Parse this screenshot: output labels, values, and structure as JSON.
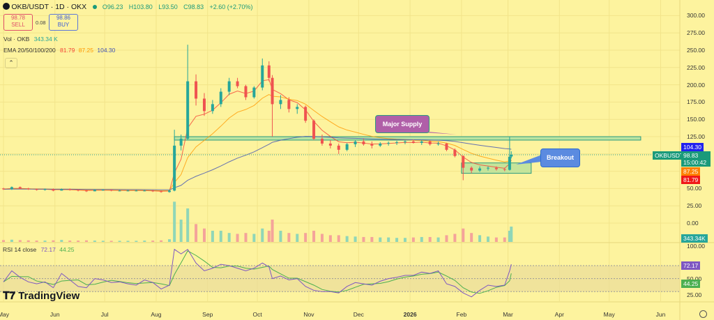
{
  "header": {
    "symbol": "OKB/USDT · 1D · OKX",
    "open": "O96.23",
    "high": "H103.80",
    "low": "L93.50",
    "close": "C98.83",
    "change": "+2.60 (+2.70%)",
    "sell_price": "98.78",
    "sell_label": "SELL",
    "spread": "0.08",
    "buy_price": "98.86",
    "buy_label": "BUY"
  },
  "indicators": {
    "volume_label": "Vol · OKB",
    "volume_value": "343.34 K",
    "ema_label": "EMA 20/50/100/200",
    "ema20": "81.79",
    "ema50": "87.25",
    "ema200": "104.30",
    "rsi_label": "RSI 14 close",
    "rsi_value": "72.17",
    "rsi_ma_value": "44.25",
    "collapse_icon": "chevron-up-icon"
  },
  "price_axis": [
    "300.00",
    "275.00",
    "250.00",
    "225.00",
    "200.00",
    "175.00",
    "150.00",
    "125.00",
    "50.00",
    "25.00",
    "0.00"
  ],
  "rsi_axis": [
    "100.00",
    "50.00",
    "25.00"
  ],
  "tags": {
    "symbol": "OKBUSDT",
    "price": "98.83",
    "countdown": "15:00:42",
    "ema200": "104.30",
    "ema50": "87.25",
    "ema20": "81.79",
    "volume": "343.34K",
    "rsi": "72.17",
    "rsi_ma": "44.25"
  },
  "colors": {
    "background": "#fdf39e",
    "up": "#26a69a",
    "down": "#ef5350",
    "ema20": "#f44336",
    "ema50": "#ff9800",
    "ema200": "#3f51b5",
    "rsi": "#7e57c2",
    "rsi_ma": "#4caf50",
    "supply": "#b05fa8",
    "breakout": "#5b8be0"
  },
  "annotations": {
    "supply_label": "Major Supply",
    "breakout_label": "Breakout"
  },
  "logo": "TradingView",
  "chart_data": {
    "type": "candlestick",
    "title": "OKB/USDT · 1D · OKX",
    "grid": true,
    "y_scale": "linear",
    "ylim": [
      0,
      310
    ],
    "rsi_ylim": [
      0,
      100
    ],
    "rsi_bands": [
      30,
      50,
      70
    ],
    "x_ticks": [
      "May",
      "Jun",
      "Jul",
      "Aug",
      "Sep",
      "Oct",
      "Nov",
      "Dec",
      "2026",
      "Feb",
      "Mar",
      "Apr",
      "May",
      "Jun"
    ],
    "x_tick_dates": [
      "2025-05-01",
      "2025-06-01",
      "2025-07-01",
      "2025-08-01",
      "2025-09-01",
      "2025-10-01",
      "2025-11-01",
      "2025-12-01",
      "2026-01-01",
      "2026-02-01",
      "2026-03-01",
      "2026-04-01",
      "2026-05-01",
      "2026-06-01"
    ],
    "columns": [
      "date",
      "open",
      "high",
      "low",
      "close",
      "volume_k",
      "rsi"
    ],
    "candles": [
      [
        "2025-05-01",
        50,
        51,
        48,
        49,
        40,
        45
      ],
      [
        "2025-05-06",
        49,
        53,
        48,
        52,
        50,
        62
      ],
      [
        "2025-05-11",
        52,
        53,
        49,
        50,
        40,
        52
      ],
      [
        "2025-05-16",
        50,
        51,
        48,
        49,
        35,
        45
      ],
      [
        "2025-05-21",
        49,
        50,
        47,
        48,
        30,
        42
      ],
      [
        "2025-05-26",
        48,
        50,
        47,
        49,
        30,
        45
      ],
      [
        "2025-05-31",
        49,
        50,
        46,
        47,
        35,
        36
      ],
      [
        "2025-06-05",
        47,
        50,
        47,
        49,
        45,
        58
      ],
      [
        "2025-06-10",
        49,
        50,
        47,
        48,
        30,
        48
      ],
      [
        "2025-06-15",
        48,
        49,
        46,
        47,
        30,
        38
      ],
      [
        "2025-06-20",
        47,
        48,
        45,
        46,
        35,
        36
      ],
      [
        "2025-06-25",
        46,
        49,
        46,
        48,
        30,
        50
      ],
      [
        "2025-06-30",
        48,
        49,
        47,
        48,
        25,
        48
      ],
      [
        "2025-07-05",
        48,
        49,
        46,
        47,
        25,
        44
      ],
      [
        "2025-07-10",
        47,
        48,
        46,
        47,
        25,
        45
      ],
      [
        "2025-07-15",
        47,
        48,
        46,
        47,
        25,
        42
      ],
      [
        "2025-07-20",
        47,
        48,
        46,
        47,
        25,
        40
      ],
      [
        "2025-07-25",
        47,
        48,
        46,
        47,
        30,
        48
      ],
      [
        "2025-07-30",
        47,
        48,
        45,
        46,
        30,
        44
      ],
      [
        "2025-08-04",
        46,
        47,
        44,
        45,
        35,
        34
      ],
      [
        "2025-08-09",
        45,
        48,
        44,
        47,
        60,
        40
      ],
      [
        "2025-08-12",
        47,
        135,
        46,
        112,
        900,
        95
      ],
      [
        "2025-08-16",
        112,
        128,
        105,
        122,
        500,
        88
      ],
      [
        "2025-08-20",
        122,
        258,
        120,
        205,
        750,
        95
      ],
      [
        "2025-08-25",
        205,
        215,
        170,
        180,
        400,
        74
      ],
      [
        "2025-08-30",
        180,
        188,
        155,
        162,
        300,
        62
      ],
      [
        "2025-09-04",
        162,
        178,
        158,
        172,
        250,
        66
      ],
      [
        "2025-09-09",
        172,
        195,
        168,
        190,
        250,
        72
      ],
      [
        "2025-09-14",
        190,
        210,
        185,
        205,
        200,
        70
      ],
      [
        "2025-09-19",
        205,
        210,
        195,
        198,
        180,
        66
      ],
      [
        "2025-09-24",
        198,
        200,
        178,
        182,
        200,
        62
      ],
      [
        "2025-09-29",
        182,
        198,
        180,
        196,
        180,
        66
      ],
      [
        "2025-10-04",
        196,
        238,
        192,
        228,
        300,
        74
      ],
      [
        "2025-10-08",
        228,
        234,
        205,
        210,
        250,
        68
      ],
      [
        "2025-10-10",
        210,
        214,
        125,
        172,
        500,
        50
      ],
      [
        "2025-10-15",
        172,
        185,
        165,
        178,
        250,
        54
      ],
      [
        "2025-10-20",
        178,
        182,
        160,
        165,
        200,
        48
      ],
      [
        "2025-10-25",
        165,
        172,
        158,
        168,
        180,
        50
      ],
      [
        "2025-10-30",
        168,
        170,
        145,
        148,
        200,
        38
      ],
      [
        "2025-11-04",
        148,
        150,
        120,
        122,
        250,
        32
      ],
      [
        "2025-11-09",
        122,
        128,
        112,
        115,
        180,
        30
      ],
      [
        "2025-11-14",
        115,
        120,
        108,
        112,
        150,
        30
      ],
      [
        "2025-11-19",
        112,
        115,
        100,
        106,
        150,
        28
      ],
      [
        "2025-11-24",
        106,
        116,
        104,
        114,
        130,
        38
      ],
      [
        "2025-11-29",
        114,
        120,
        110,
        118,
        120,
        44
      ],
      [
        "2025-12-04",
        118,
        122,
        112,
        114,
        110,
        42
      ],
      [
        "2025-12-09",
        114,
        118,
        108,
        112,
        110,
        40
      ],
      [
        "2025-12-14",
        112,
        117,
        110,
        115,
        100,
        46
      ],
      [
        "2025-12-19",
        115,
        118,
        112,
        116,
        100,
        50
      ],
      [
        "2025-12-24",
        116,
        119,
        113,
        117,
        90,
        52
      ],
      [
        "2025-12-29",
        117,
        120,
        114,
        118,
        90,
        55
      ],
      [
        "2026-01-03",
        118,
        121,
        115,
        116,
        100,
        55
      ],
      [
        "2026-01-08",
        116,
        120,
        113,
        118,
        110,
        60
      ],
      [
        "2026-01-13",
        118,
        120,
        112,
        114,
        110,
        58
      ],
      [
        "2026-01-18",
        114,
        118,
        112,
        115,
        100,
        62
      ],
      [
        "2026-01-23",
        115,
        116,
        104,
        106,
        150,
        42
      ],
      [
        "2026-01-28",
        106,
        108,
        95,
        97,
        180,
        38
      ],
      [
        "2026-02-02",
        97,
        98,
        62,
        80,
        300,
        28
      ],
      [
        "2026-02-07",
        80,
        82,
        72,
        76,
        200,
        22
      ],
      [
        "2026-02-12",
        76,
        82,
        74,
        79,
        150,
        32
      ],
      [
        "2026-02-17",
        79,
        82,
        76,
        80,
        120,
        40
      ],
      [
        "2026-02-22",
        80,
        82,
        76,
        78,
        100,
        38
      ],
      [
        "2026-02-27",
        78,
        80,
        75,
        77,
        100,
        40
      ],
      [
        "2026-03-02",
        77,
        125,
        76,
        96,
        250,
        62
      ],
      [
        "2026-03-03",
        96.23,
        103.8,
        93.5,
        98.83,
        343.34,
        72.17
      ]
    ],
    "supply_zone": {
      "from": "2025-08-12",
      "to": "2026-05-20",
      "low": 120,
      "high": 125
    },
    "breakout_zone": {
      "from": "2026-02-01",
      "to": "2026-03-15",
      "low": 72,
      "high": 87
    }
  }
}
